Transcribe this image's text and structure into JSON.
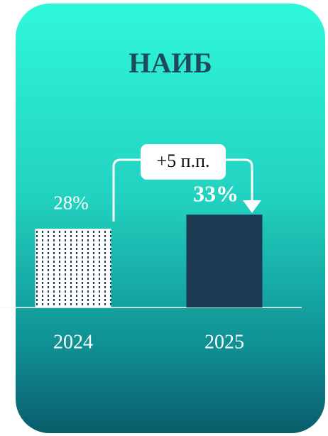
{
  "chart_data": {
    "type": "bar",
    "title": "НАИБ",
    "categories": [
      "2024",
      "2025"
    ],
    "values": [
      28,
      33
    ],
    "value_labels": [
      "28%",
      "33%"
    ],
    "colors": [
      "#ffffff",
      "#1b3a52"
    ],
    "hatch": [
      true,
      false
    ],
    "annotation": "+5 п.п.",
    "ylim": [
      0,
      100
    ]
  }
}
